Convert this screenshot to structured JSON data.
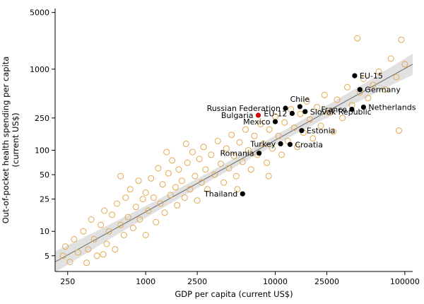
{
  "figure": {
    "title": ""
  },
  "chart_data": {
    "type": "scatter",
    "xlabel": "GDP per capita (current US$)",
    "ylabel_line1": "Out-of-pocket health spending per capita",
    "ylabel_line2": "(current US$)",
    "x_scale": "log",
    "y_scale": "log",
    "x_domain": [
      200,
      115000
    ],
    "y_domain": [
      3.2,
      5600
    ],
    "x_ticks": [
      250,
      1000,
      2500,
      10000,
      25000,
      100000
    ],
    "y_ticks": [
      5,
      10,
      25,
      50,
      100,
      250,
      1000,
      5000
    ],
    "grid": false,
    "legend": "none",
    "regression_line": {
      "x1": 200,
      "y1": 4.2,
      "x2": 115000,
      "y2": 1150
    },
    "confidence_band": {
      "halfwidth_log_center": 0.055,
      "halfwidth_log_edge": 0.13
    },
    "colors": {
      "background_point": "#e2a84e",
      "labeled_point": "#000000",
      "highlight_point": "#d40000",
      "line": "#737373",
      "band": "#dcdcdc",
      "axis": "#000000"
    },
    "labeled_points": [
      {
        "name": "EU-15",
        "x": 41000,
        "y": 830,
        "side": "right",
        "highlight": false
      },
      {
        "name": "Germany",
        "x": 45000,
        "y": 560,
        "side": "right",
        "highlight": false
      },
      {
        "name": "Netherlands",
        "x": 48000,
        "y": 340,
        "side": "right",
        "highlight": false
      },
      {
        "name": "France",
        "x": 39000,
        "y": 320,
        "side": "left",
        "highlight": false
      },
      {
        "name": "Slovak Republic",
        "x": 17000,
        "y": 300,
        "side": "right",
        "highlight": false
      },
      {
        "name": "Chile",
        "x": 15500,
        "y": 345,
        "side": "above",
        "highlight": false
      },
      {
        "name": "Russian Federation",
        "x": 12000,
        "y": 330,
        "side": "left",
        "highlight": false
      },
      {
        "name": "EU-12",
        "x": 13500,
        "y": 285,
        "side": "left",
        "highlight": false
      },
      {
        "name": "Bulgaria",
        "x": 7400,
        "y": 270,
        "side": "left",
        "highlight": true
      },
      {
        "name": "Mexico",
        "x": 10000,
        "y": 225,
        "side": "left",
        "highlight": false
      },
      {
        "name": "Estonia",
        "x": 16000,
        "y": 175,
        "side": "right",
        "highlight": false
      },
      {
        "name": "Croatia",
        "x": 13000,
        "y": 118,
        "side": "right",
        "highlight": false
      },
      {
        "name": "Turkey",
        "x": 11000,
        "y": 120,
        "side": "left",
        "highlight": false
      },
      {
        "name": "Romania",
        "x": 7500,
        "y": 92,
        "side": "left",
        "highlight": false
      },
      {
        "name": "Thailand",
        "x": 5600,
        "y": 29,
        "side": "left",
        "highlight": false
      }
    ],
    "background_points": [
      [
        230,
        5.0
      ],
      [
        240,
        6.5
      ],
      [
        260,
        4.2
      ],
      [
        280,
        8
      ],
      [
        300,
        5.5
      ],
      [
        330,
        10
      ],
      [
        360,
        6
      ],
      [
        380,
        14
      ],
      [
        400,
        8
      ],
      [
        420,
        5
      ],
      [
        450,
        12
      ],
      [
        480,
        18
      ],
      [
        500,
        7
      ],
      [
        520,
        10
      ],
      [
        550,
        16
      ],
      [
        580,
        6
      ],
      [
        600,
        22
      ],
      [
        640,
        12
      ],
      [
        680,
        9
      ],
      [
        700,
        26
      ],
      [
        730,
        15
      ],
      [
        760,
        33
      ],
      [
        800,
        11
      ],
      [
        840,
        20
      ],
      [
        880,
        42
      ],
      [
        900,
        14
      ],
      [
        950,
        25
      ],
      [
        1000,
        9
      ],
      [
        1000,
        30
      ],
      [
        1050,
        18
      ],
      [
        1100,
        45
      ],
      [
        1150,
        26
      ],
      [
        1200,
        13
      ],
      [
        1250,
        60
      ],
      [
        1300,
        22
      ],
      [
        1350,
        38
      ],
      [
        1400,
        17
      ],
      [
        1500,
        52
      ],
      [
        1550,
        28
      ],
      [
        1600,
        75
      ],
      [
        1700,
        35
      ],
      [
        1750,
        21
      ],
      [
        1800,
        58
      ],
      [
        1900,
        42
      ],
      [
        2000,
        26
      ],
      [
        2100,
        70
      ],
      [
        2200,
        33
      ],
      [
        2300,
        95
      ],
      [
        2400,
        48
      ],
      [
        2500,
        24
      ],
      [
        2600,
        78
      ],
      [
        2700,
        40
      ],
      [
        2800,
        110
      ],
      [
        2900,
        58
      ],
      [
        3000,
        33
      ],
      [
        3200,
        88
      ],
      [
        3400,
        50
      ],
      [
        3600,
        130
      ],
      [
        3800,
        68
      ],
      [
        4000,
        40
      ],
      [
        4200,
        105
      ],
      [
        4400,
        60
      ],
      [
        4600,
        155
      ],
      [
        4800,
        85
      ],
      [
        5000,
        48
      ],
      [
        5300,
        125
      ],
      [
        5600,
        72
      ],
      [
        5900,
        180
      ],
      [
        6200,
        100
      ],
      [
        6500,
        58
      ],
      [
        6900,
        150
      ],
      [
        7300,
        88
      ],
      [
        7700,
        210
      ],
      [
        8100,
        120
      ],
      [
        8600,
        70
      ],
      [
        9000,
        180
      ],
      [
        9500,
        105
      ],
      [
        10000,
        260
      ],
      [
        10600,
        150
      ],
      [
        11200,
        88
      ],
      [
        11800,
        220
      ],
      [
        12500,
        130
      ],
      [
        13200,
        320
      ],
      [
        14000,
        190
      ],
      [
        14800,
        110
      ],
      [
        15600,
        280
      ],
      [
        16500,
        165
      ],
      [
        17500,
        400
      ],
      [
        18500,
        240
      ],
      [
        19500,
        140
      ],
      [
        21000,
        340
      ],
      [
        22500,
        200
      ],
      [
        24000,
        480
      ],
      [
        26000,
        290
      ],
      [
        28000,
        170
      ],
      [
        30000,
        420
      ],
      [
        33000,
        250
      ],
      [
        36000,
        600
      ],
      [
        39000,
        360
      ],
      [
        43000,
        2400
      ],
      [
        45000,
        520
      ],
      [
        48000,
        760
      ],
      [
        52000,
        440
      ],
      [
        57000,
        640
      ],
      [
        63000,
        930
      ],
      [
        70000,
        560
      ],
      [
        78000,
        1350
      ],
      [
        86000,
        800
      ],
      [
        94000,
        2300
      ],
      [
        100000,
        1150
      ],
      [
        90000,
        175
      ],
      [
        640,
        48
      ],
      [
        1450,
        95
      ],
      [
        2050,
        120
      ],
      [
        5100,
        33
      ],
      [
        8900,
        48
      ],
      [
        350,
        4.1
      ],
      [
        470,
        5.2
      ]
    ]
  }
}
